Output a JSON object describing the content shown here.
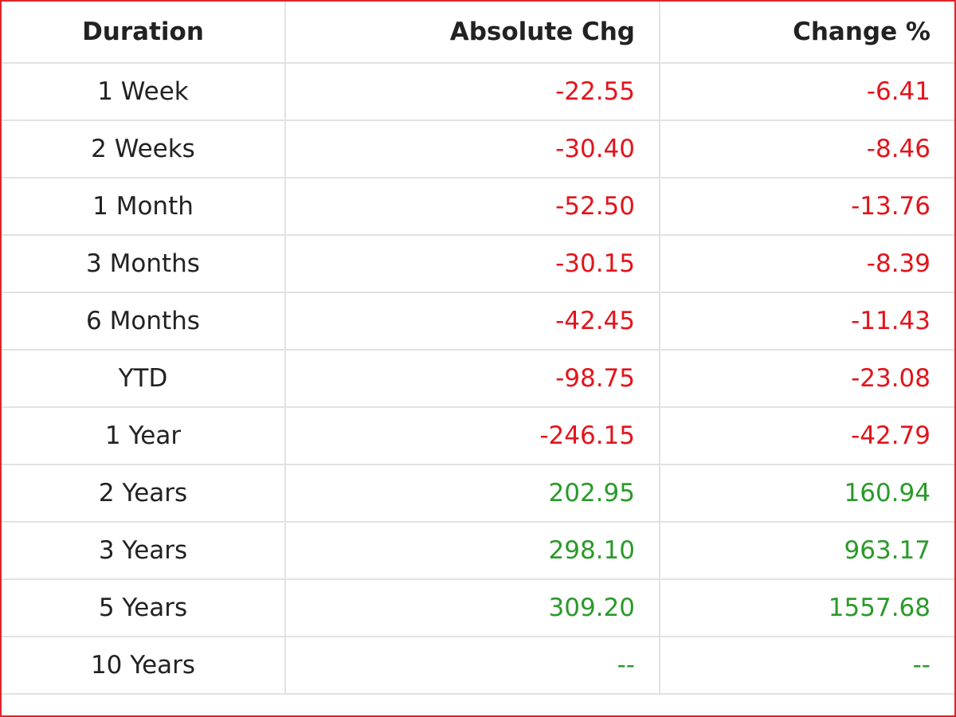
{
  "table": {
    "header": [
      "Duration",
      "Absolute Chg",
      "Change %"
    ],
    "rows": [
      [
        "1 Week",
        "-22.55",
        "-6.41"
      ],
      [
        "2 Weeks",
        "-30.40",
        "-8.46"
      ],
      [
        "1 Month",
        "-52.50",
        "-13.76"
      ],
      [
        "3 Months",
        "-30.15",
        "-8.39"
      ],
      [
        "6 Months",
        "-42.45",
        "-11.43"
      ],
      [
        "YTD",
        "-98.75",
        "-23.08"
      ],
      [
        "1 Year",
        "-246.15",
        "-42.79"
      ],
      [
        "2 Years",
        "202.95",
        "160.94"
      ],
      [
        "3 Years",
        "298.10",
        "963.17"
      ],
      [
        "5 Years",
        "309.20",
        "1557.68"
      ],
      [
        "10 Years",
        "--",
        "--"
      ]
    ],
    "colors": {
      "negative": "#e3141b",
      "positive": "#2a9a2a"
    }
  }
}
